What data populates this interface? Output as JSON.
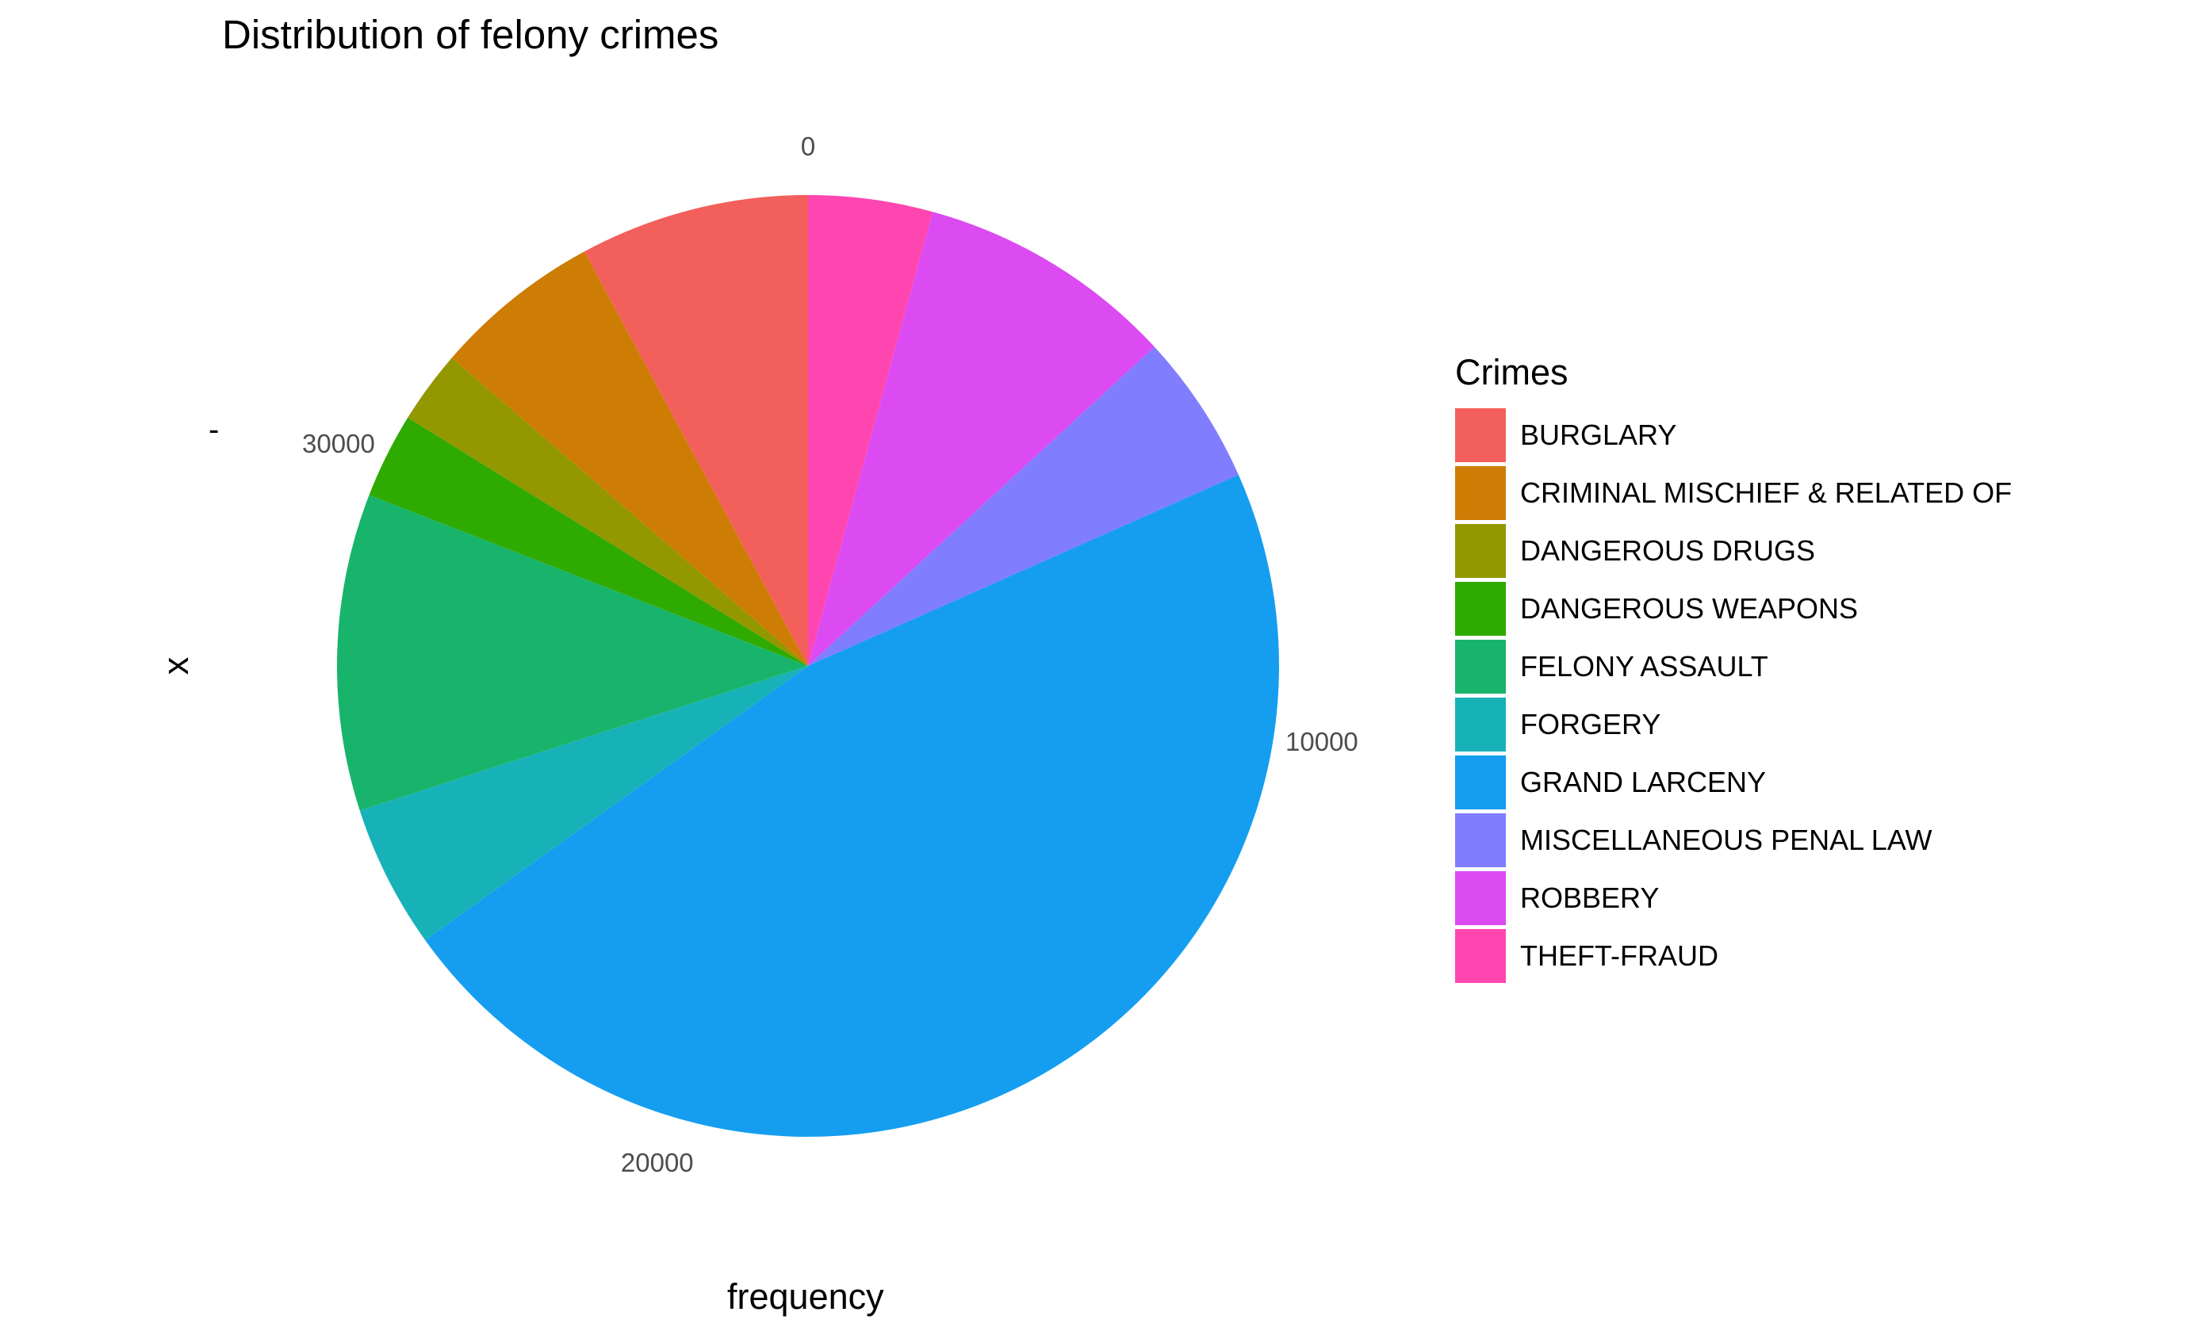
{
  "chart_data": {
    "type": "pie",
    "title": "Distribution of felony crimes",
    "xlabel": "frequency",
    "ylabel": "x",
    "y_category": "-",
    "legend_title": "Crimes",
    "legend_position": "right",
    "start": "top",
    "direction": "clockwise",
    "axis_ticks": [
      {
        "label": "0",
        "value": 0
      },
      {
        "label": "10000",
        "value": 10000
      },
      {
        "label": "20000",
        "value": 20000
      },
      {
        "label": "30000",
        "value": 30000
      }
    ],
    "slices": [
      {
        "label": "THEFT-FRAUD",
        "value": 1560,
        "color": "#FF46B0"
      },
      {
        "label": "ROBBERY",
        "value": 3250,
        "color": "#DC4AF2"
      },
      {
        "label": "MISCELLANEOUS PENAL LAW",
        "value": 1900,
        "color": "#807DFF"
      },
      {
        "label": "GRAND LARCENY",
        "value": 17100,
        "color": "#159EF0"
      },
      {
        "label": "FORGERY",
        "value": 1800,
        "color": "#17B2B8"
      },
      {
        "label": "FELONY ASSAULT",
        "value": 3980,
        "color": "#19B46B"
      },
      {
        "label": "DANGEROUS WEAPONS",
        "value": 1070,
        "color": "#2FAA00"
      },
      {
        "label": "DANGEROUS DRUGS",
        "value": 920,
        "color": "#939700"
      },
      {
        "label": "CRIMINAL MISCHIEF & RELATED OF",
        "value": 2110,
        "color": "#CE7D04"
      },
      {
        "label": "BURGLARY",
        "value": 2880,
        "color": "#F35F5B"
      }
    ],
    "legend": [
      {
        "label": "BURGLARY",
        "color": "#F35F5B"
      },
      {
        "label": "CRIMINAL MISCHIEF & RELATED OF",
        "color": "#CE7D04"
      },
      {
        "label": "DANGEROUS DRUGS",
        "color": "#939700"
      },
      {
        "label": "DANGEROUS WEAPONS",
        "color": "#2FAA00"
      },
      {
        "label": "FELONY ASSAULT",
        "color": "#19B46B"
      },
      {
        "label": "FORGERY",
        "color": "#17B2B8"
      },
      {
        "label": "GRAND LARCENY",
        "color": "#159EF0"
      },
      {
        "label": "MISCELLANEOUS PENAL LAW",
        "color": "#807DFF"
      },
      {
        "label": "ROBBERY",
        "color": "#DC4AF2"
      },
      {
        "label": "THEFT-FRAUD",
        "color": "#FF46B0"
      }
    ]
  }
}
